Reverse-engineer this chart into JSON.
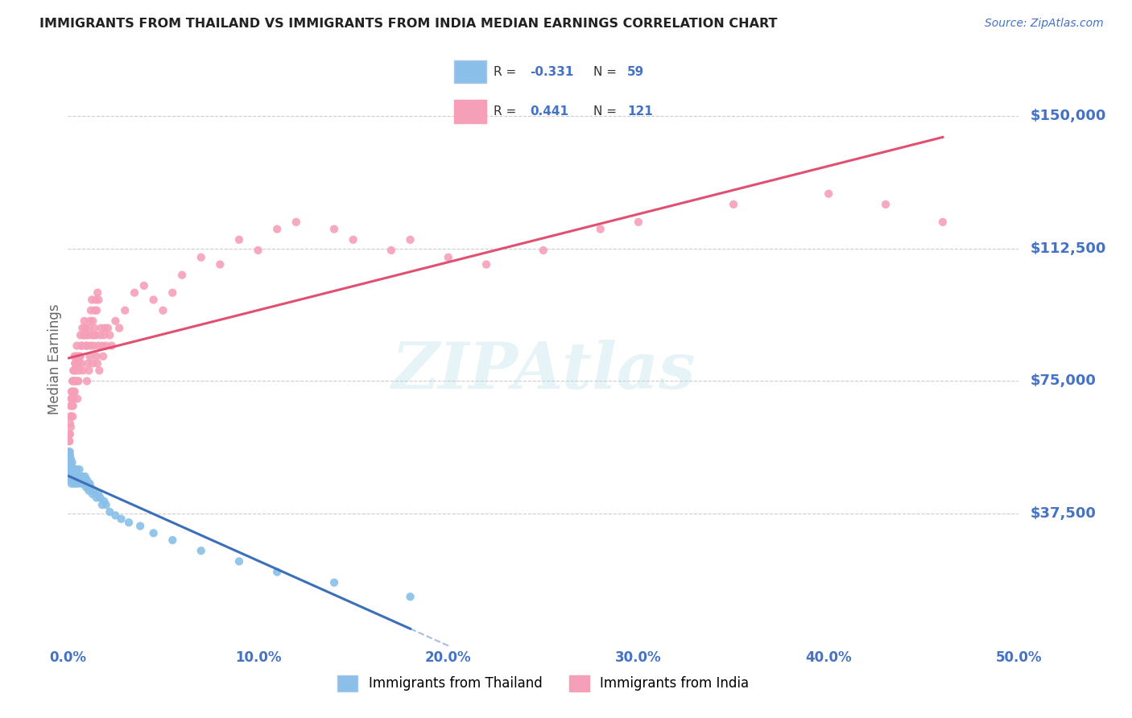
{
  "title": "IMMIGRANTS FROM THAILAND VS IMMIGRANTS FROM INDIA MEDIAN EARNINGS CORRELATION CHART",
  "source": "Source: ZipAtlas.com",
  "ylabel": "Median Earnings",
  "yticks": [
    0,
    37500,
    75000,
    112500,
    150000
  ],
  "ytick_labels": [
    "",
    "$37,500",
    "$75,000",
    "$112,500",
    "$150,000"
  ],
  "xticks": [
    0,
    10,
    20,
    30,
    40,
    50
  ],
  "xtick_labels": [
    "0.0%",
    "10.0%",
    "20.0%",
    "30.0%",
    "40.0%",
    "50.0%"
  ],
  "xlim": [
    0.0,
    50.0
  ],
  "ylim": [
    0,
    162500
  ],
  "watermark": "ZIPAtlas",
  "legend_label1": "Immigrants from Thailand",
  "legend_label2": "Immigrants from India",
  "R1": "-0.331",
  "N1": "59",
  "R2": "0.441",
  "N2": "121",
  "thailand_color": "#89bfe8",
  "india_color": "#f5a0b8",
  "trendline_thailand_color": "#3c6fba",
  "trendline_india_color": "#e05070",
  "background_color": "#ffffff",
  "grid_color": "#cccccc",
  "title_color": "#222222",
  "source_color": "#4472c4",
  "right_tick_color": "#4472c4",
  "bottom_tick_color": "#4472c4",
  "thailand_x": [
    0.05,
    0.08,
    0.1,
    0.12,
    0.15,
    0.18,
    0.2,
    0.22,
    0.25,
    0.28,
    0.3,
    0.32,
    0.35,
    0.38,
    0.4,
    0.42,
    0.45,
    0.48,
    0.5,
    0.55,
    0.6,
    0.65,
    0.7,
    0.75,
    0.8,
    0.85,
    0.9,
    0.95,
    1.0,
    1.05,
    1.1,
    1.15,
    1.2,
    1.3,
    1.4,
    1.5,
    1.6,
    1.7,
    1.8,
    1.9,
    2.0,
    2.2,
    2.5,
    2.8,
    3.2,
    3.8,
    4.5,
    5.5,
    7.0,
    9.0,
    11.0,
    14.0,
    18.0,
    0.06,
    0.09,
    0.11,
    0.14,
    0.17,
    0.19
  ],
  "thailand_y": [
    52000,
    50000,
    55000,
    48000,
    53000,
    50000,
    48000,
    52000,
    47000,
    50000,
    49000,
    48000,
    46000,
    50000,
    48000,
    47000,
    50000,
    48000,
    46000,
    47000,
    50000,
    48000,
    46000,
    48000,
    47000,
    46000,
    48000,
    45000,
    47000,
    46000,
    44000,
    46000,
    45000,
    43000,
    44000,
    42000,
    43000,
    42000,
    40000,
    41000,
    40000,
    38000,
    37000,
    36000,
    35000,
    34000,
    32000,
    30000,
    27000,
    24000,
    21000,
    18000,
    14000,
    51000,
    49000,
    54000,
    47000,
    51000,
    46000
  ],
  "india_x": [
    0.05,
    0.08,
    0.1,
    0.12,
    0.15,
    0.18,
    0.2,
    0.22,
    0.25,
    0.28,
    0.3,
    0.32,
    0.35,
    0.38,
    0.4,
    0.42,
    0.45,
    0.48,
    0.5,
    0.55,
    0.6,
    0.65,
    0.7,
    0.75,
    0.8,
    0.85,
    0.9,
    0.95,
    1.0,
    1.05,
    1.1,
    1.15,
    1.2,
    1.25,
    1.3,
    1.35,
    1.4,
    1.45,
    1.5,
    1.55,
    1.6,
    1.65,
    1.7,
    1.75,
    1.8,
    1.85,
    1.9,
    1.95,
    2.0,
    2.1,
    2.2,
    2.3,
    2.5,
    2.7,
    3.0,
    3.5,
    4.0,
    4.5,
    5.0,
    5.5,
    6.0,
    7.0,
    8.0,
    9.0,
    10.0,
    11.0,
    12.0,
    14.0,
    15.0,
    17.0,
    18.0,
    20.0,
    22.0,
    25.0,
    28.0,
    30.0,
    35.0,
    40.0,
    43.0,
    46.0,
    0.06,
    0.09,
    0.11,
    0.14,
    0.17,
    0.19,
    0.21,
    0.24,
    0.27,
    0.29,
    0.31,
    0.34,
    0.37,
    0.39,
    0.41,
    0.44,
    0.47,
    0.49,
    0.52,
    0.56,
    0.61,
    0.66,
    0.71,
    0.76,
    0.81,
    0.86,
    0.91,
    0.96,
    1.01,
    1.06,
    1.11,
    1.16,
    1.21,
    1.26,
    1.31,
    1.36,
    1.41,
    1.46,
    1.51,
    1.56,
    1.61
  ],
  "india_y": [
    55000,
    58000,
    60000,
    65000,
    62000,
    70000,
    68000,
    72000,
    65000,
    75000,
    70000,
    78000,
    72000,
    80000,
    75000,
    78000,
    80000,
    82000,
    70000,
    75000,
    78000,
    82000,
    80000,
    85000,
    78000,
    88000,
    90000,
    85000,
    75000,
    80000,
    78000,
    82000,
    85000,
    88000,
    80000,
    85000,
    90000,
    88000,
    82000,
    80000,
    85000,
    78000,
    88000,
    90000,
    85000,
    82000,
    88000,
    90000,
    85000,
    90000,
    88000,
    85000,
    92000,
    90000,
    95000,
    100000,
    102000,
    98000,
    95000,
    100000,
    105000,
    110000,
    108000,
    115000,
    112000,
    118000,
    120000,
    118000,
    115000,
    112000,
    115000,
    110000,
    108000,
    112000,
    118000,
    120000,
    125000,
    128000,
    125000,
    120000,
    58000,
    60000,
    63000,
    68000,
    65000,
    72000,
    70000,
    75000,
    68000,
    78000,
    72000,
    82000,
    75000,
    80000,
    78000,
    82000,
    85000,
    80000,
    75000,
    80000,
    82000,
    88000,
    85000,
    90000,
    88000,
    92000,
    90000,
    88000,
    85000,
    88000,
    90000,
    92000,
    95000,
    98000,
    92000,
    88000,
    95000,
    98000,
    95000,
    100000,
    98000
  ]
}
